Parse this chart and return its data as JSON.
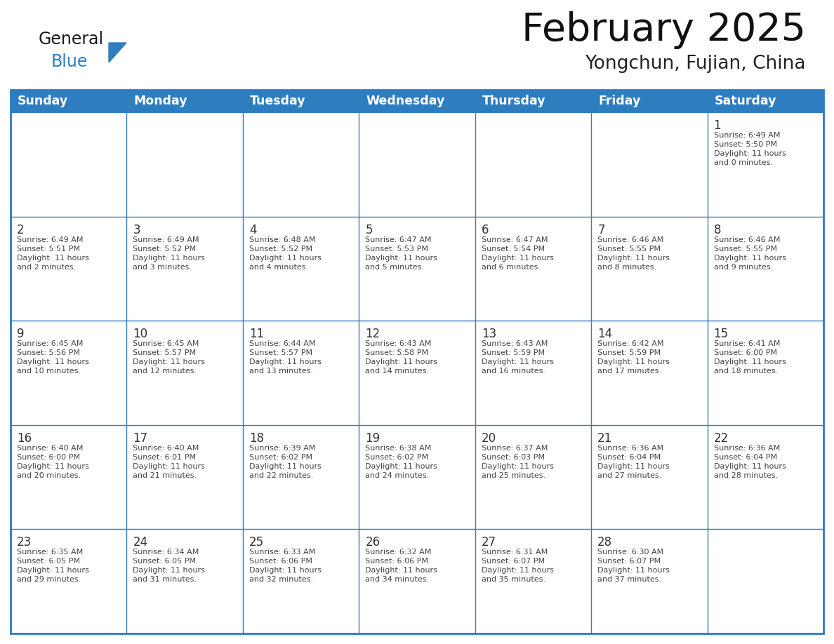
{
  "title": "February 2025",
  "subtitle": "Yongchun, Fujian, China",
  "header_color": "#2E7DBF",
  "header_text_color": "#FFFFFF",
  "days_of_week": [
    "Sunday",
    "Monday",
    "Tuesday",
    "Wednesday",
    "Thursday",
    "Friday",
    "Saturday"
  ],
  "border_color": "#2E7DBF",
  "text_color": "#444444",
  "day_num_color": "#333333",
  "logo_general_color": "#1a1a1a",
  "logo_blue_color": "#2E7DBF",
  "calendar": [
    [
      null,
      null,
      null,
      null,
      null,
      null,
      {
        "day": 1,
        "sunrise": "6:49 AM",
        "sunset": "5:50 PM",
        "daylight_hours": 11,
        "daylight_minutes": 0
      }
    ],
    [
      {
        "day": 2,
        "sunrise": "6:49 AM",
        "sunset": "5:51 PM",
        "daylight_hours": 11,
        "daylight_minutes": 2
      },
      {
        "day": 3,
        "sunrise": "6:49 AM",
        "sunset": "5:52 PM",
        "daylight_hours": 11,
        "daylight_minutes": 3
      },
      {
        "day": 4,
        "sunrise": "6:48 AM",
        "sunset": "5:52 PM",
        "daylight_hours": 11,
        "daylight_minutes": 4
      },
      {
        "day": 5,
        "sunrise": "6:47 AM",
        "sunset": "5:53 PM",
        "daylight_hours": 11,
        "daylight_minutes": 5
      },
      {
        "day": 6,
        "sunrise": "6:47 AM",
        "sunset": "5:54 PM",
        "daylight_hours": 11,
        "daylight_minutes": 6
      },
      {
        "day": 7,
        "sunrise": "6:46 AM",
        "sunset": "5:55 PM",
        "daylight_hours": 11,
        "daylight_minutes": 8
      },
      {
        "day": 8,
        "sunrise": "6:46 AM",
        "sunset": "5:55 PM",
        "daylight_hours": 11,
        "daylight_minutes": 9
      }
    ],
    [
      {
        "day": 9,
        "sunrise": "6:45 AM",
        "sunset": "5:56 PM",
        "daylight_hours": 11,
        "daylight_minutes": 10
      },
      {
        "day": 10,
        "sunrise": "6:45 AM",
        "sunset": "5:57 PM",
        "daylight_hours": 11,
        "daylight_minutes": 12
      },
      {
        "day": 11,
        "sunrise": "6:44 AM",
        "sunset": "5:57 PM",
        "daylight_hours": 11,
        "daylight_minutes": 13
      },
      {
        "day": 12,
        "sunrise": "6:43 AM",
        "sunset": "5:58 PM",
        "daylight_hours": 11,
        "daylight_minutes": 14
      },
      {
        "day": 13,
        "sunrise": "6:43 AM",
        "sunset": "5:59 PM",
        "daylight_hours": 11,
        "daylight_minutes": 16
      },
      {
        "day": 14,
        "sunrise": "6:42 AM",
        "sunset": "5:59 PM",
        "daylight_hours": 11,
        "daylight_minutes": 17
      },
      {
        "day": 15,
        "sunrise": "6:41 AM",
        "sunset": "6:00 PM",
        "daylight_hours": 11,
        "daylight_minutes": 18
      }
    ],
    [
      {
        "day": 16,
        "sunrise": "6:40 AM",
        "sunset": "6:00 PM",
        "daylight_hours": 11,
        "daylight_minutes": 20
      },
      {
        "day": 17,
        "sunrise": "6:40 AM",
        "sunset": "6:01 PM",
        "daylight_hours": 11,
        "daylight_minutes": 21
      },
      {
        "day": 18,
        "sunrise": "6:39 AM",
        "sunset": "6:02 PM",
        "daylight_hours": 11,
        "daylight_minutes": 22
      },
      {
        "day": 19,
        "sunrise": "6:38 AM",
        "sunset": "6:02 PM",
        "daylight_hours": 11,
        "daylight_minutes": 24
      },
      {
        "day": 20,
        "sunrise": "6:37 AM",
        "sunset": "6:03 PM",
        "daylight_hours": 11,
        "daylight_minutes": 25
      },
      {
        "day": 21,
        "sunrise": "6:36 AM",
        "sunset": "6:04 PM",
        "daylight_hours": 11,
        "daylight_minutes": 27
      },
      {
        "day": 22,
        "sunrise": "6:36 AM",
        "sunset": "6:04 PM",
        "daylight_hours": 11,
        "daylight_minutes": 28
      }
    ],
    [
      {
        "day": 23,
        "sunrise": "6:35 AM",
        "sunset": "6:05 PM",
        "daylight_hours": 11,
        "daylight_minutes": 29
      },
      {
        "day": 24,
        "sunrise": "6:34 AM",
        "sunset": "6:05 PM",
        "daylight_hours": 11,
        "daylight_minutes": 31
      },
      {
        "day": 25,
        "sunrise": "6:33 AM",
        "sunset": "6:06 PM",
        "daylight_hours": 11,
        "daylight_minutes": 32
      },
      {
        "day": 26,
        "sunrise": "6:32 AM",
        "sunset": "6:06 PM",
        "daylight_hours": 11,
        "daylight_minutes": 34
      },
      {
        "day": 27,
        "sunrise": "6:31 AM",
        "sunset": "6:07 PM",
        "daylight_hours": 11,
        "daylight_minutes": 35
      },
      {
        "day": 28,
        "sunrise": "6:30 AM",
        "sunset": "6:07 PM",
        "daylight_hours": 11,
        "daylight_minutes": 37
      },
      null
    ]
  ]
}
